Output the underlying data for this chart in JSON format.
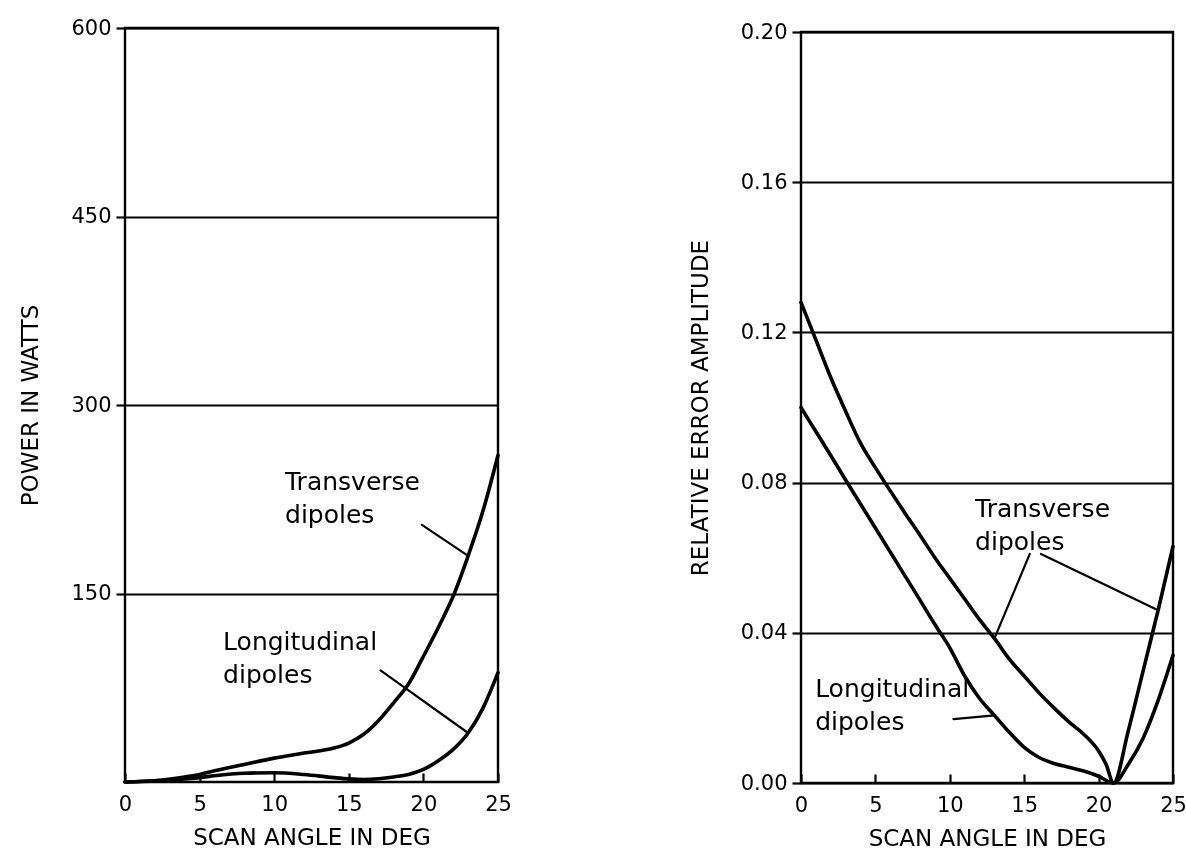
{
  "chart_data": [
    {
      "type": "line",
      "xlabel": "SCAN ANGLE IN DEG",
      "ylabel": "POWER IN WATTS",
      "xlim": [
        0,
        25
      ],
      "xticks": [
        0,
        5,
        10,
        15,
        20,
        25
      ],
      "ylim": [
        0,
        600
      ],
      "yticks": [
        150,
        300,
        450,
        600
      ],
      "grid": "y",
      "x": [
        0,
        2,
        4,
        5,
        6,
        8,
        10,
        12,
        14,
        15,
        16,
        17,
        18,
        19,
        20,
        21,
        22,
        23,
        24,
        25
      ],
      "series": [
        {
          "name": "Transverse dipoles",
          "color": "#000000",
          "values": [
            0,
            1,
            4,
            6,
            9,
            14,
            19,
            23,
            27,
            31,
            38,
            49,
            63,
            78,
            100,
            123,
            148,
            180,
            216,
            260
          ]
        },
        {
          "name": "Longitudinal dipoles",
          "color": "#000000",
          "values": [
            0,
            1,
            2.5,
            3.5,
            5,
            7,
            7.4,
            6,
            3.5,
            2.5,
            2,
            2.6,
            4,
            6,
            10,
            17,
            26,
            39,
            59,
            87
          ]
        }
      ]
    },
    {
      "type": "line",
      "xlabel": "SCAN ANGLE IN DEG",
      "ylabel": "RELATIVE ERROR AMPLITUDE",
      "xlim": [
        0,
        25
      ],
      "xticks": [
        0,
        5,
        10,
        15,
        20,
        25
      ],
      "ylim": [
        0,
        0.2
      ],
      "yticks": [
        {
          "value": 0,
          "label": "0.00"
        },
        0.04,
        0.08,
        0.12,
        0.16,
        {
          "value": 0.2,
          "label": "0.20"
        }
      ],
      "grid": "y",
      "series": [
        {
          "name": "Transverse dipoles",
          "color": "#000000",
          "x": [
            0,
            1,
            2,
            3,
            4,
            5,
            6,
            7,
            8,
            9,
            10,
            11,
            12,
            13,
            14,
            15,
            16,
            17,
            18,
            19,
            20,
            20.5,
            21,
            22,
            23,
            24,
            25
          ],
          "values": [
            0.128,
            0.118,
            0.108,
            0.099,
            0.0905,
            0.084,
            0.0778,
            0.0718,
            0.066,
            0.06,
            0.0545,
            0.049,
            0.0435,
            0.0385,
            0.033,
            0.0285,
            0.024,
            0.02,
            0.0163,
            0.013,
            0.0085,
            0.005,
            0,
            0.014,
            0.03,
            0.046,
            0.063
          ]
        },
        {
          "name": "Longitudinal dipoles",
          "color": "#000000",
          "x": [
            0,
            1,
            2,
            3,
            4,
            5,
            6,
            7,
            8,
            9,
            10,
            11,
            12,
            13,
            14,
            15,
            16,
            17,
            18,
            19,
            20,
            21,
            22,
            23,
            24,
            25
          ],
          "values": [
            0.1,
            0.0936,
            0.0872,
            0.0807,
            0.0743,
            0.0679,
            0.0615,
            0.0551,
            0.0487,
            0.0422,
            0.036,
            0.0285,
            0.0225,
            0.018,
            0.0135,
            0.0095,
            0.0068,
            0.0052,
            0.0042,
            0.0032,
            0.0018,
            0,
            0.005,
            0.012,
            0.022,
            0.034
          ]
        }
      ]
    }
  ]
}
